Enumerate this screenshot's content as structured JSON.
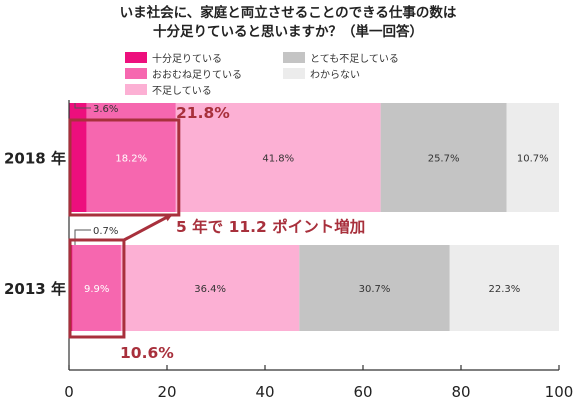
{
  "chart_data": {
    "type": "bar",
    "orientation": "horizontal",
    "stacked": true,
    "title": [
      "いま社会に、家庭と両立させることのできる仕事の数は",
      "十分足りていると思いますか？（単一回答）"
    ],
    "categories": [
      "2018 年",
      "2013 年"
    ],
    "series": [
      {
        "name": "十分足りている",
        "values": [
          3.6,
          0.7
        ],
        "labels": [
          "3.6%",
          "0.7%"
        ],
        "color": "#ed0f7d"
      },
      {
        "name": "おおむね足りている",
        "values": [
          18.2,
          9.9
        ],
        "labels": [
          "18.2%",
          "9.9%"
        ],
        "color": "#f667af"
      },
      {
        "name": "不足している",
        "values": [
          41.8,
          36.4
        ],
        "labels": [
          "41.8%",
          "36.4%"
        ],
        "color": "#fcb0d4"
      },
      {
        "name": "とても不足している",
        "values": [
          25.7,
          30.7
        ],
        "labels": [
          "25.7%",
          "30.7%"
        ],
        "color": "#c4c4c4"
      },
      {
        "name": "わからない",
        "values": [
          10.7,
          22.3
        ],
        "labels": [
          "10.7%",
          "22.3%"
        ],
        "color": "#ececec"
      }
    ],
    "xlim": [
      0,
      100
    ],
    "xticks": [
      "0",
      "20",
      "40",
      "60",
      "80",
      "100"
    ],
    "grid": false,
    "legend_position": "top",
    "annotations": {
      "total_2018": "21.8%",
      "total_2013": "10.6%",
      "increase": "5 年で 11.2 ポイント増加"
    },
    "highlight_color": "#a8303c"
  }
}
